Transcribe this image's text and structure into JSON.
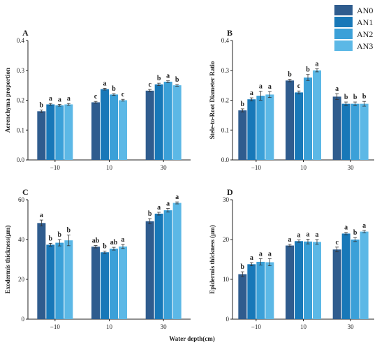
{
  "figure": {
    "xlabel": "Water depth(cm)"
  },
  "legend": {
    "entries": [
      {
        "name": "AN0",
        "color": "#2f5c8e"
      },
      {
        "name": "AN1",
        "color": "#1878b8"
      },
      {
        "name": "AN2",
        "color": "#3ba0d8"
      },
      {
        "name": "AN3",
        "color": "#5cb8e6"
      }
    ],
    "placement": "top-right"
  },
  "chart_data": [
    {
      "type": "bar",
      "letter": "A",
      "ylabel": "Aerenchyma proportion",
      "categories": [
        "−10",
        "10",
        "30"
      ],
      "ylim": [
        0,
        0.4
      ],
      "yticks": [
        "0.0",
        "0.1",
        "0.2",
        "0.3",
        "0.4"
      ],
      "series": [
        {
          "name": "AN0",
          "values": [
            0.163,
            0.193,
            0.232
          ],
          "errors": [
            0.004,
            0.003,
            0.004
          ],
          "letters": [
            "b",
            "c",
            "c"
          ]
        },
        {
          "name": "AN1",
          "values": [
            0.186,
            0.237,
            0.253
          ],
          "errors": [
            0.003,
            0.003,
            0.004
          ],
          "letters": [
            "a",
            "a",
            "b"
          ]
        },
        {
          "name": "AN2",
          "values": [
            0.183,
            0.219,
            0.262
          ],
          "errors": [
            0.003,
            0.003,
            0.003
          ],
          "letters": [
            "a",
            "b",
            "a"
          ]
        },
        {
          "name": "AN3",
          "values": [
            0.186,
            0.2,
            0.25
          ],
          "errors": [
            0.003,
            0.003,
            0.003
          ],
          "letters": [
            "a",
            "c",
            "b"
          ]
        }
      ]
    },
    {
      "type": "bar",
      "letter": "B",
      "ylabel": "Stele-to-Root Diameter Ratio",
      "categories": [
        "−10",
        "10",
        "30"
      ],
      "ylim": [
        0,
        0.4
      ],
      "yticks": [
        "0.0",
        "0.1",
        "0.2",
        "0.3",
        "0.4"
      ],
      "series": [
        {
          "name": "AN0",
          "values": [
            0.166,
            0.266,
            0.212
          ],
          "errors": [
            0.005,
            0.004,
            0.01
          ],
          "letters": [
            "b",
            "b",
            "a"
          ]
        },
        {
          "name": "AN1",
          "values": [
            0.203,
            0.226,
            0.188
          ],
          "errors": [
            0.005,
            0.005,
            0.006
          ],
          "letters": [
            "a",
            "c",
            "b"
          ]
        },
        {
          "name": "AN2",
          "values": [
            0.215,
            0.276,
            0.188
          ],
          "errors": [
            0.015,
            0.01,
            0.006
          ],
          "letters": [
            "a",
            "b",
            "b"
          ]
        },
        {
          "name": "AN3",
          "values": [
            0.219,
            0.3,
            0.188
          ],
          "errors": [
            0.01,
            0.005,
            0.008
          ],
          "letters": [
            "a",
            "a",
            "b"
          ]
        }
      ]
    },
    {
      "type": "bar",
      "letter": "C",
      "ylabel": "Exodermis thickness(μm)",
      "categories": [
        "−10",
        "10",
        "30"
      ],
      "ylim": [
        0,
        60
      ],
      "yticks": [
        "0",
        "20",
        "40",
        "60"
      ],
      "series": [
        {
          "name": "AN0",
          "values": [
            48.3,
            36.4,
            49.2
          ],
          "errors": [
            1.5,
            0.6,
            1.3
          ],
          "letters": [
            "a",
            "ab",
            "b"
          ]
        },
        {
          "name": "AN1",
          "values": [
            37.4,
            33.6,
            53.0
          ],
          "errors": [
            0.7,
            0.6,
            0.7
          ],
          "letters": [
            "b",
            "b",
            "a"
          ]
        },
        {
          "name": "AN2",
          "values": [
            38.4,
            35.4,
            54.7
          ],
          "errors": [
            1.6,
            0.7,
            0.9
          ],
          "letters": [
            "b",
            "ab",
            "a"
          ]
        },
        {
          "name": "AN3",
          "values": [
            39.6,
            36.5,
            58.4
          ],
          "errors": [
            2.7,
            1.0,
            0.5
          ],
          "letters": [
            "b",
            "a",
            "a"
          ]
        }
      ]
    },
    {
      "type": "bar",
      "letter": "D",
      "ylabel": "Epidermis thickness (μm)",
      "categories": [
        "−10",
        "10",
        "30"
      ],
      "ylim": [
        0,
        30
      ],
      "yticks": [
        "0",
        "10",
        "20",
        "30"
      ],
      "series": [
        {
          "name": "AN0",
          "values": [
            11.3,
            18.5,
            17.5
          ],
          "errors": [
            0.6,
            0.3,
            0.6
          ],
          "letters": [
            "b",
            "a",
            "c"
          ]
        },
        {
          "name": "AN1",
          "values": [
            13.8,
            19.6,
            21.5
          ],
          "errors": [
            0.4,
            0.3,
            0.3
          ],
          "letters": [
            "a",
            "a",
            "a"
          ]
        },
        {
          "name": "AN2",
          "values": [
            14.4,
            19.5,
            20.0
          ],
          "errors": [
            0.8,
            0.6,
            0.5
          ],
          "letters": [
            "a",
            "a",
            "b"
          ]
        },
        {
          "name": "AN3",
          "values": [
            14.3,
            19.4,
            22.0
          ],
          "errors": [
            0.9,
            0.6,
            0.3
          ],
          "letters": [
            "a",
            "a",
            "a"
          ]
        }
      ]
    }
  ]
}
